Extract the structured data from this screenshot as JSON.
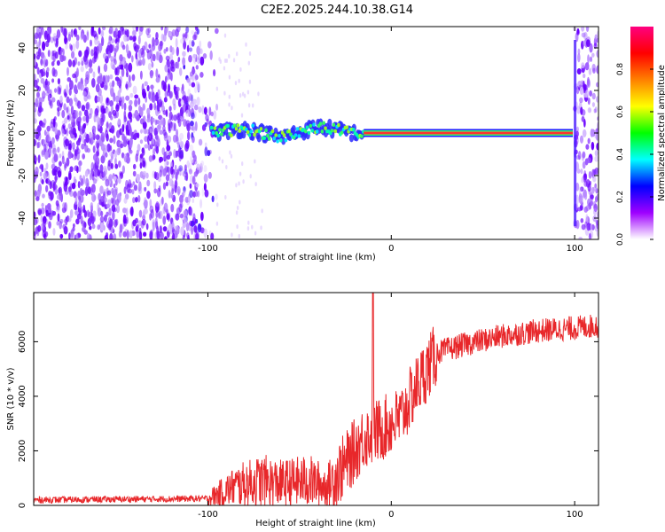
{
  "title": "C2E2.2025.244.10.38.G14",
  "chart_data": [
    {
      "type": "heatmap",
      "name": "spectrogram",
      "xlabel": "Height of straight line (km)",
      "ylabel": "Frequency (Hz)",
      "xlim": [
        -195,
        113
      ],
      "ylim": [
        -50,
        50
      ],
      "xticks": [
        -100,
        0,
        100
      ],
      "xtick_labels": [
        "-100",
        "0",
        "100"
      ],
      "yticks": [
        40,
        20,
        0,
        -20,
        -40
      ],
      "ytick_labels": [
        "40",
        "20",
        "0",
        "-20",
        "-40"
      ],
      "colorbar": {
        "label": "Normalized spectral amplitude",
        "range": [
          0,
          1
        ],
        "ticks": [
          0.0,
          0.2,
          0.4,
          0.6,
          0.8
        ],
        "tick_labels": [
          "0.0",
          "0.2",
          "0.4",
          "0.6",
          "0.8"
        ],
        "stops": [
          "#ffffff",
          "#9f00ff",
          "#0000ff",
          "#00ffff",
          "#00ff00",
          "#ffff00",
          "#ff8000",
          "#ff0000",
          "#ff0080"
        ]
      },
      "signal_track": [
        {
          "x": -100,
          "y": 0
        },
        {
          "x": -80,
          "y": 2
        },
        {
          "x": -60,
          "y": -2
        },
        {
          "x": -40,
          "y": 3
        },
        {
          "x": -20,
          "y": 0
        },
        {
          "x": 0,
          "y": 0
        },
        {
          "x": 100,
          "y": 0
        }
      ]
    },
    {
      "type": "line",
      "name": "snr",
      "xlabel": "Height of straight line (km)",
      "ylabel": "SNR (10 * v/v)",
      "xlim": [
        -195,
        113
      ],
      "ylim": [
        0,
        7800
      ],
      "xticks": [
        -100,
        0,
        100
      ],
      "xtick_labels": [
        "-100",
        "0",
        "100"
      ],
      "yticks": [
        0,
        2000,
        4000,
        6000
      ],
      "ytick_labels": [
        "0",
        "2000",
        "4000",
        "6000"
      ],
      "color": "#e8272a",
      "trend": [
        {
          "x": -195,
          "y": 200
        },
        {
          "x": -100,
          "y": 250
        },
        {
          "x": -85,
          "y": 700
        },
        {
          "x": -70,
          "y": 900
        },
        {
          "x": -60,
          "y": 800
        },
        {
          "x": -45,
          "y": 900
        },
        {
          "x": -35,
          "y": 700
        },
        {
          "x": -25,
          "y": 1500
        },
        {
          "x": -15,
          "y": 2500
        },
        {
          "x": -5,
          "y": 2800
        },
        {
          "x": 5,
          "y": 3200
        },
        {
          "x": 15,
          "y": 4500
        },
        {
          "x": 25,
          "y": 5600
        },
        {
          "x": 40,
          "y": 5900
        },
        {
          "x": 60,
          "y": 6200
        },
        {
          "x": 80,
          "y": 6400
        },
        {
          "x": 100,
          "y": 6500
        },
        {
          "x": 113,
          "y": 6600
        }
      ],
      "spike": {
        "x": -10,
        "y": 7800
      }
    }
  ]
}
